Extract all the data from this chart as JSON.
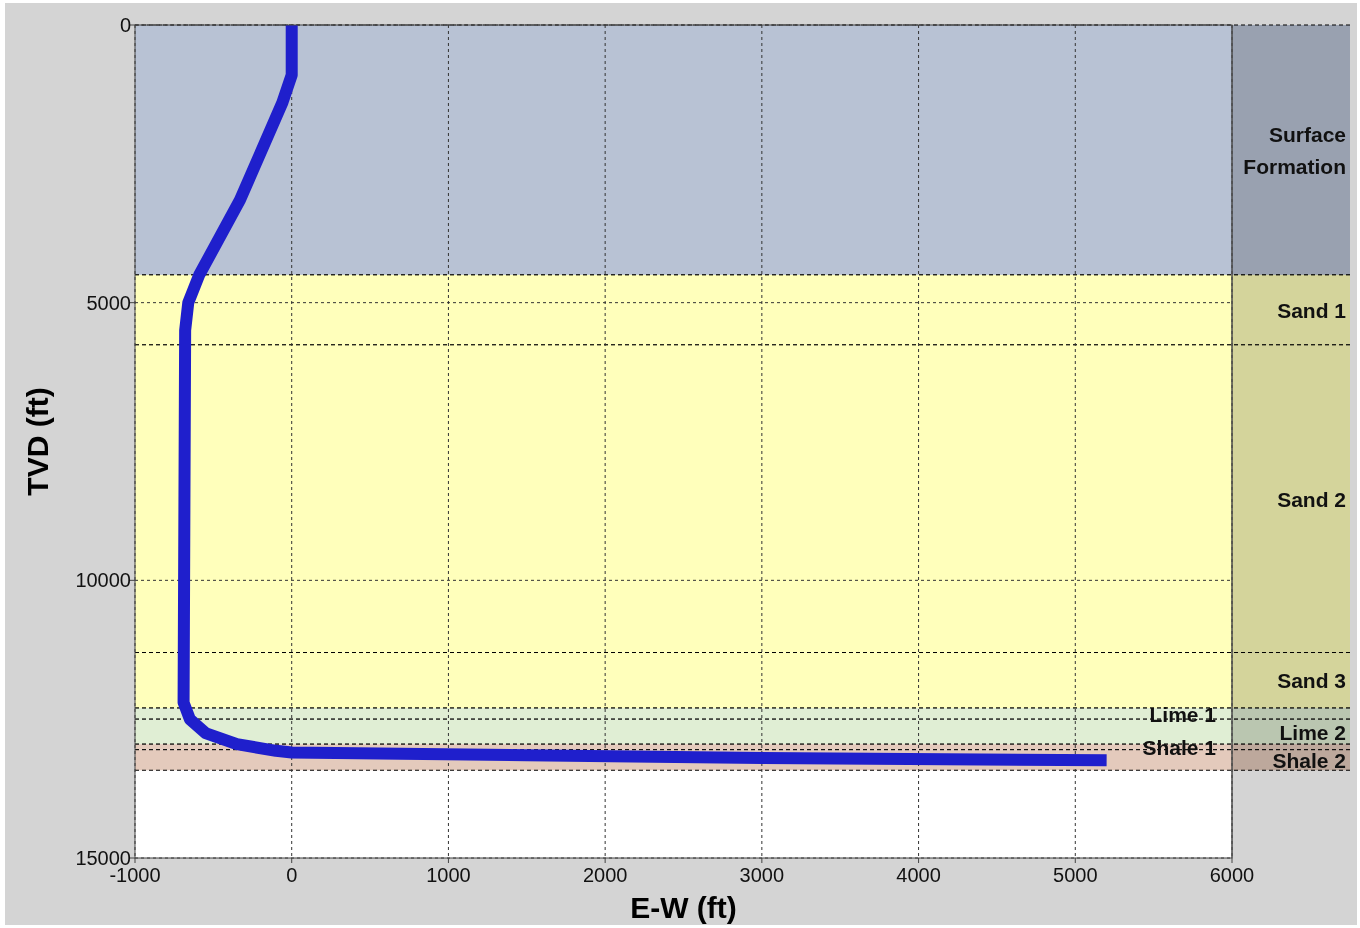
{
  "chart_data": {
    "type": "line",
    "xlabel": "E-W (ft)",
    "ylabel": "TVD (ft)",
    "xlim": [
      -1000,
      6000
    ],
    "xticks": [
      -1000,
      0,
      1000,
      2000,
      3000,
      4000,
      5000,
      6000
    ],
    "ylim": [
      15000,
      0
    ],
    "yticks": [
      0,
      5000,
      10000,
      15000
    ],
    "grid": true,
    "line_style": "solid",
    "series": [
      {
        "color": "#1f1fcc",
        "x": [
          0,
          0,
          -60,
          -330,
          -590,
          -660,
          -680,
          -690,
          -650,
          -550,
          -350,
          -100,
          0,
          1500,
          3000,
          5200
        ],
        "values": [
          0,
          900,
          1400,
          3150,
          4500,
          5000,
          5500,
          12200,
          12500,
          12750,
          12950,
          13070,
          13100,
          13150,
          13200,
          13240
        ]
      }
    ],
    "bands": [
      {
        "axis": "y",
        "from": 0,
        "to": 4500,
        "label": "Surface Formation",
        "color": "#b8c2d4"
      },
      {
        "axis": "y",
        "from": 4500,
        "to": 5760,
        "label": "Sand 1",
        "color": "#ffffbb"
      },
      {
        "axis": "y",
        "from": 5760,
        "to": 11300,
        "label": "Sand 2",
        "color": "#ffffbb"
      },
      {
        "axis": "y",
        "from": 11300,
        "to": 12300,
        "label": "Sand 3",
        "color": "#ffffbb"
      },
      {
        "axis": "y",
        "from": 12300,
        "to": 12500,
        "label": "Lime 1",
        "color": "#e0eed4"
      },
      {
        "axis": "y",
        "from": 12500,
        "to": 12950,
        "label": "Lime 2",
        "color": "#e0eed4"
      },
      {
        "axis": "y",
        "from": 12950,
        "to": 13050,
        "label": "Shale 1",
        "color": "#e4cabc"
      },
      {
        "axis": "y",
        "from": 13050,
        "to": 13420,
        "label": "Shale 2",
        "color": "#e4cabc"
      }
    ]
  }
}
